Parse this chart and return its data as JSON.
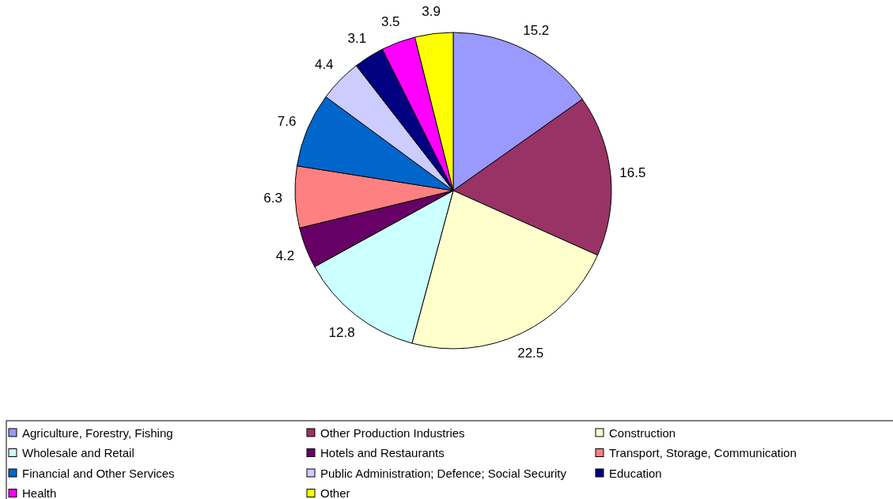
{
  "chart_data": {
    "type": "pie",
    "categories": [
      "Agriculture, Forestry, Fishing",
      "Other Production Industries",
      "Construction",
      "Wholesale and Retail",
      "Hotels and Restaurants",
      "Transport, Storage, Communication",
      "Financial and Other Services",
      "Public Administration; Defence; Social Security",
      "Education",
      "Health",
      "Other"
    ],
    "values": [
      15.2,
      16.5,
      22.5,
      12.8,
      4.2,
      6.3,
      7.6,
      4.4,
      3.1,
      3.5,
      3.9
    ],
    "colors": [
      "#9999ff",
      "#993366",
      "#ffffcc",
      "#ccffff",
      "#660066",
      "#ff8080",
      "#0066cc",
      "#ccccff",
      "#000080",
      "#ff00ff",
      "#ffff00"
    ],
    "data_labels": true,
    "legend": "bottom"
  }
}
